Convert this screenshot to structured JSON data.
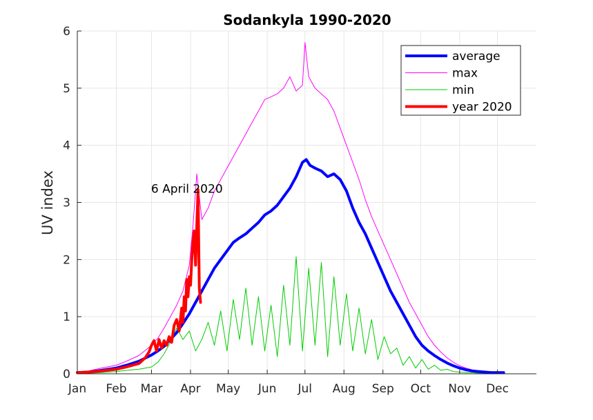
{
  "chart_data": {
    "type": "line",
    "title": "Sodankyla 1990-2020",
    "xlabel": "",
    "ylabel": "UV index",
    "x_unit": "day of year",
    "xlim": [
      1,
      366
    ],
    "ylim": [
      0,
      6
    ],
    "yticks": [
      0,
      1,
      2,
      3,
      4,
      5,
      6
    ],
    "month_ticks": [
      {
        "label": "Jan",
        "day": 1
      },
      {
        "label": "Feb",
        "day": 32
      },
      {
        "label": "Mar",
        "day": 60
      },
      {
        "label": "Apr",
        "day": 91
      },
      {
        "label": "May",
        "day": 121
      },
      {
        "label": "Jun",
        "day": 152
      },
      {
        "label": "Jul",
        "day": 182
      },
      {
        "label": "Aug",
        "day": 213
      },
      {
        "label": "Sep",
        "day": 244
      },
      {
        "label": "Oct",
        "day": 274
      },
      {
        "label": "Nov",
        "day": 305
      },
      {
        "label": "Dec",
        "day": 335
      }
    ],
    "grid": true,
    "legend_position": "top-right",
    "annotation": {
      "text": "6 April 2020",
      "x": 97,
      "y": 3.22
    },
    "series": [
      {
        "name": "average",
        "color": "#0000ff",
        "width": 4,
        "x": [
          1,
          10,
          20,
          32,
          40,
          50,
          60,
          65,
          70,
          75,
          80,
          85,
          90,
          95,
          100,
          105,
          110,
          115,
          120,
          125,
          130,
          135,
          140,
          145,
          150,
          155,
          160,
          165,
          170,
          175,
          180,
          183,
          186,
          190,
          195,
          200,
          205,
          210,
          215,
          220,
          225,
          230,
          235,
          240,
          245,
          250,
          255,
          260,
          265,
          270,
          275,
          280,
          285,
          290,
          295,
          300,
          305,
          310,
          315,
          320,
          325,
          330,
          335,
          340
        ],
        "y": [
          0.02,
          0.03,
          0.06,
          0.1,
          0.15,
          0.22,
          0.33,
          0.4,
          0.48,
          0.6,
          0.72,
          0.88,
          1.05,
          1.25,
          1.45,
          1.65,
          1.85,
          2.0,
          2.15,
          2.3,
          2.38,
          2.45,
          2.55,
          2.65,
          2.78,
          2.85,
          2.95,
          3.1,
          3.25,
          3.45,
          3.7,
          3.75,
          3.65,
          3.6,
          3.55,
          3.45,
          3.5,
          3.4,
          3.2,
          2.9,
          2.65,
          2.45,
          2.2,
          1.95,
          1.7,
          1.45,
          1.25,
          1.05,
          0.85,
          0.65,
          0.5,
          0.4,
          0.32,
          0.25,
          0.19,
          0.14,
          0.1,
          0.07,
          0.05,
          0.04,
          0.03,
          0.02,
          0.02,
          0.02
        ]
      },
      {
        "name": "max",
        "color": "#ff00ff",
        "width": 1,
        "x": [
          1,
          10,
          20,
          32,
          40,
          50,
          60,
          65,
          70,
          75,
          80,
          85,
          90,
          93,
          96,
          100,
          105,
          110,
          115,
          120,
          125,
          130,
          135,
          140,
          145,
          150,
          155,
          160,
          165,
          170,
          175,
          180,
          182,
          185,
          190,
          195,
          200,
          205,
          210,
          215,
          220,
          225,
          230,
          235,
          240,
          245,
          250,
          255,
          260,
          265,
          270,
          275,
          280,
          285,
          290,
          295,
          300,
          305,
          310,
          315,
          320,
          325,
          330,
          335,
          340
        ],
        "y": [
          0.03,
          0.05,
          0.1,
          0.15,
          0.22,
          0.32,
          0.5,
          0.62,
          0.8,
          1.0,
          1.2,
          1.45,
          1.9,
          2.6,
          3.5,
          2.7,
          2.9,
          3.2,
          3.4,
          3.6,
          3.8,
          4.0,
          4.2,
          4.4,
          4.6,
          4.8,
          4.85,
          4.9,
          5.0,
          5.2,
          4.95,
          5.05,
          5.8,
          5.2,
          5.0,
          4.9,
          4.8,
          4.6,
          4.3,
          4.0,
          3.7,
          3.4,
          3.05,
          2.75,
          2.5,
          2.25,
          2.0,
          1.75,
          1.5,
          1.25,
          1.05,
          0.85,
          0.65,
          0.5,
          0.38,
          0.28,
          0.2,
          0.14,
          0.1,
          0.07,
          0.05,
          0.04,
          0.03,
          0.03,
          0.02
        ]
      },
      {
        "name": "min",
        "color": "#00cc00",
        "width": 1,
        "x": [
          1,
          10,
          20,
          32,
          40,
          50,
          60,
          65,
          70,
          75,
          80,
          85,
          90,
          95,
          100,
          105,
          110,
          115,
          120,
          125,
          130,
          135,
          140,
          145,
          150,
          155,
          160,
          165,
          170,
          175,
          180,
          185,
          190,
          195,
          200,
          205,
          210,
          215,
          220,
          225,
          230,
          235,
          240,
          245,
          250,
          255,
          260,
          265,
          270,
          275,
          280,
          285,
          290,
          295,
          300,
          305,
          310,
          315,
          320,
          325,
          330,
          335,
          340
        ],
        "y": [
          0.0,
          0.01,
          0.02,
          0.04,
          0.06,
          0.08,
          0.12,
          0.2,
          0.35,
          0.55,
          0.8,
          0.6,
          0.75,
          0.4,
          0.6,
          0.9,
          0.5,
          1.1,
          0.4,
          1.3,
          0.6,
          1.5,
          0.5,
          1.35,
          0.4,
          1.2,
          0.3,
          1.55,
          0.5,
          2.05,
          0.4,
          1.85,
          0.5,
          1.95,
          0.3,
          1.7,
          0.5,
          1.4,
          0.4,
          1.15,
          0.35,
          0.95,
          0.25,
          0.65,
          0.35,
          0.45,
          0.15,
          0.3,
          0.1,
          0.25,
          0.08,
          0.15,
          0.06,
          0.08,
          0.04,
          0.03,
          0.02,
          0.02,
          0.01,
          0.01,
          0.01,
          0.01,
          0.0
        ]
      },
      {
        "name": "year 2020",
        "color": "#ff0000",
        "width": 4,
        "x": [
          1,
          10,
          20,
          32,
          40,
          50,
          55,
          58,
          60,
          62,
          64,
          66,
          68,
          70,
          72,
          74,
          76,
          78,
          80,
          82,
          84,
          85,
          86,
          87,
          88,
          89,
          90,
          91,
          92,
          93,
          94,
          95,
          96,
          97,
          98,
          99
        ],
        "y": [
          0.02,
          0.03,
          0.05,
          0.08,
          0.12,
          0.18,
          0.28,
          0.38,
          0.5,
          0.58,
          0.4,
          0.6,
          0.45,
          0.58,
          0.5,
          0.65,
          0.55,
          0.85,
          0.95,
          0.75,
          1.15,
          0.9,
          1.35,
          1.1,
          1.65,
          1.35,
          1.7,
          1.55,
          2.0,
          2.3,
          2.5,
          1.9,
          2.6,
          3.22,
          1.5,
          1.25
        ]
      }
    ]
  }
}
